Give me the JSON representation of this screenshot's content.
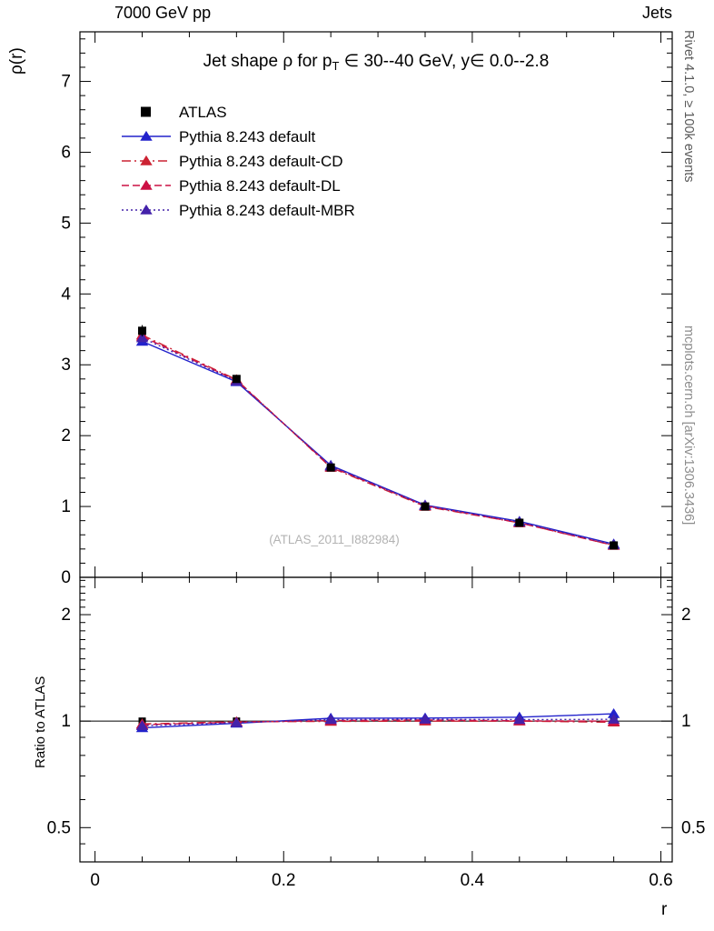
{
  "header": {
    "left": "7000 GeV pp",
    "right": "Jets"
  },
  "side_texts": {
    "top_right": "Rivet 4.1.0, ≥ 100k events",
    "bottom_right": "mcplots.cern.ch [arXiv:1306.3436]"
  },
  "watermark": "(ATLAS_2011_I882984)",
  "chart_data": {
    "type": "line",
    "title": {
      "prefix": "Jet shape ρ for p",
      "sub": "T",
      "suffix": " ∈ 30--40 GeV, y∈ 0.0--2.8"
    },
    "xlabel": "r",
    "ylabel": "ρ(r)",
    "ratio_ylabel": "Ratio to ATLAS",
    "legend_position": "top-left",
    "grid": false,
    "x": [
      0.05,
      0.15,
      0.25,
      0.35,
      0.45,
      0.55
    ],
    "series": [
      {
        "name": "ATLAS",
        "kind": "data",
        "marker": "square",
        "color": "#000000",
        "values": [
          3.48,
          2.8,
          1.55,
          1.0,
          0.77,
          0.45
        ],
        "errors": [
          0.08,
          0.05,
          0.04,
          0.03,
          0.02,
          0.015
        ]
      },
      {
        "name": "Pythia 8.243 default",
        "marker": "triangle",
        "color": "#2222cc",
        "dash": "solid",
        "values": [
          3.33,
          2.76,
          1.58,
          1.02,
          0.79,
          0.47
        ]
      },
      {
        "name": "Pythia 8.243 default-CD",
        "marker": "triangle",
        "color": "#cc2233",
        "dash": "dashdot",
        "values": [
          3.42,
          2.79,
          1.55,
          1.0,
          0.77,
          0.45
        ]
      },
      {
        "name": "Pythia 8.243 default-DL",
        "marker": "triangle",
        "color": "#cc1144",
        "dash": "dashed",
        "values": [
          3.4,
          2.78,
          1.56,
          1.01,
          0.77,
          0.45
        ]
      },
      {
        "name": "Pythia 8.243 default-MBR",
        "marker": "triangle",
        "color": "#4422aa",
        "dash": "dotted",
        "values": [
          3.38,
          2.77,
          1.57,
          1.01,
          0.78,
          0.46
        ]
      }
    ],
    "ratio": {
      "baseline": 1,
      "series_values": [
        [
          0.957,
          0.986,
          1.019,
          1.02,
          1.026,
          1.049
        ],
        [
          0.982,
          0.996,
          0.998,
          1.0,
          1.0,
          0.993
        ],
        [
          0.977,
          0.993,
          1.004,
          1.008,
          1.002,
          1.0
        ],
        [
          0.97,
          0.99,
          1.01,
          1.012,
          1.01,
          1.012
        ]
      ]
    },
    "axes": {
      "x": {
        "min": -0.016,
        "max": 0.612,
        "majors": [
          0,
          0.2,
          0.4,
          0.6
        ],
        "labels": [
          "0",
          "0.2",
          "0.4",
          "0.6"
        ],
        "minor_step": 0.05
      },
      "y_main": {
        "min": 0,
        "max": 7.7,
        "majors": [
          0,
          1,
          2,
          3,
          4,
          5,
          6,
          7
        ],
        "labels": [
          "0",
          "1",
          "2",
          "3",
          "4",
          "5",
          "6",
          "7"
        ],
        "minor_step": 0.2
      },
      "y_ratio": {
        "min": 0.4,
        "max": 2.55,
        "scale": "log",
        "majors": [
          0.5,
          1,
          2
        ],
        "labels": [
          "0.5",
          "1",
          "2"
        ]
      }
    }
  }
}
